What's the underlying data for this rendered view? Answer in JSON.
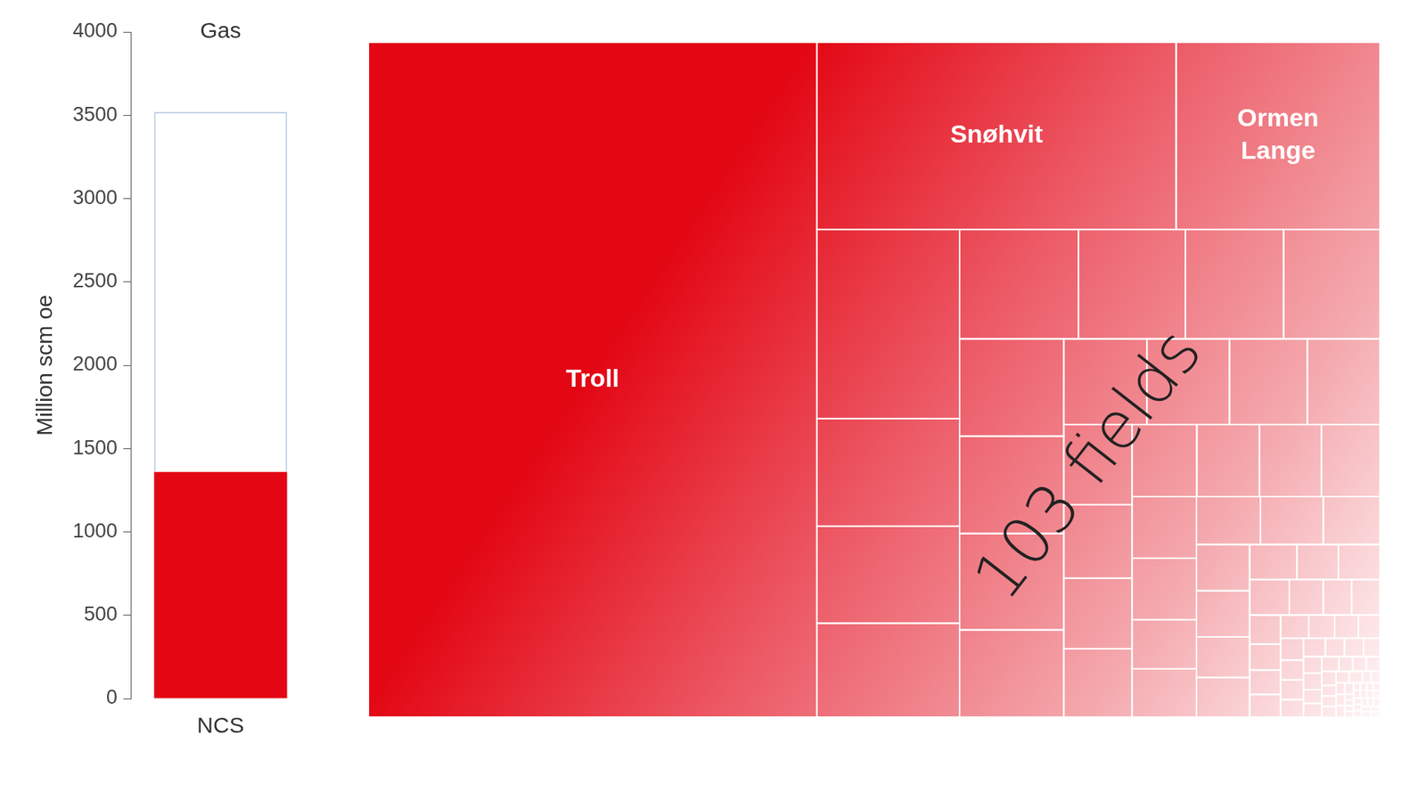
{
  "chart_data": [
    {
      "type": "bar",
      "title": "Gas",
      "categories": [
        "NCS"
      ],
      "series": [
        {
          "color": "#e30613",
          "values": [
            1360
          ]
        },
        {
          "color": "#ffffff",
          "values": [
            2160
          ]
        }
      ],
      "stacked": true,
      "ylabel": "Million scm oe",
      "ylim": [
        0,
        4000
      ],
      "yticks": [
        0,
        500,
        1000,
        1500,
        2000,
        2500,
        3000,
        3500,
        4000
      ],
      "grid": false
    },
    {
      "type": "treemap",
      "color": "#e30613",
      "annotations": [
        "103 fields"
      ],
      "categories": [
        "Troll",
        "Snøhvit",
        "Ormen Lange",
        null,
        null,
        null,
        null,
        null,
        null,
        null,
        null,
        null,
        null,
        null,
        null,
        null,
        null,
        null,
        null,
        null,
        null,
        null,
        null,
        null,
        null,
        null,
        null,
        null,
        null,
        null,
        null,
        null,
        null,
        null,
        null,
        null,
        null,
        null,
        null,
        null,
        null,
        null,
        null,
        null,
        null,
        null,
        null,
        null,
        null,
        null,
        null,
        null,
        null,
        null,
        null,
        null,
        null,
        null,
        null,
        null,
        null,
        null,
        null,
        null,
        null,
        null,
        null,
        null,
        null,
        null,
        null,
        null,
        null,
        null,
        null,
        null,
        null,
        null,
        null,
        null,
        null,
        null,
        null,
        null,
        null,
        null,
        null,
        null,
        null,
        null,
        null,
        null,
        null,
        null,
        null,
        null,
        null,
        null,
        null,
        null,
        null,
        null,
        null
      ],
      "values": [
        603,
        134,
        76,
        53.8,
        30.6,
        27.6,
        26.7,
        25.9,
        23.3,
        21.4,
        21.0,
        20.2,
        20.2,
        20.0,
        18.1,
        14.2,
        14.1,
        13.3,
        12.4,
        10.9,
        10.0,
        9.6,
        9.3,
        9.3,
        9.0,
        8.9,
        8.4,
        7.9,
        7.9,
        6.3,
        6.2,
        6.1,
        6.0,
        5.4,
        4.9,
        4.9,
        4.3,
        4.2,
        3.3,
        2.9,
        2.9,
        2.8,
        2.4,
        2.0,
        2.0,
        1.8,
        1.6,
        1.5,
        1.4,
        1.3,
        1.2,
        1.1,
        1.0,
        1.0,
        0.9,
        0.9,
        0.8,
        0.8,
        0.7,
        0.7,
        0.6,
        0.6,
        0.6,
        0.5,
        0.5,
        0.5,
        0.4,
        0.4,
        0.4,
        0.4,
        0.3,
        0.3,
        0.3,
        0.3,
        0.3,
        0.2,
        0.2,
        0.2,
        0.2,
        0.2,
        0.2,
        0.1,
        0.1,
        0.1,
        0.1,
        0.1,
        0.1,
        0.1,
        0.1,
        0.1,
        0.1,
        0.1,
        0.1,
        0.1,
        0.1,
        0.1,
        0.1,
        0.1,
        0.1,
        0.1,
        0.1,
        0.1,
        0.1
      ]
    }
  ]
}
